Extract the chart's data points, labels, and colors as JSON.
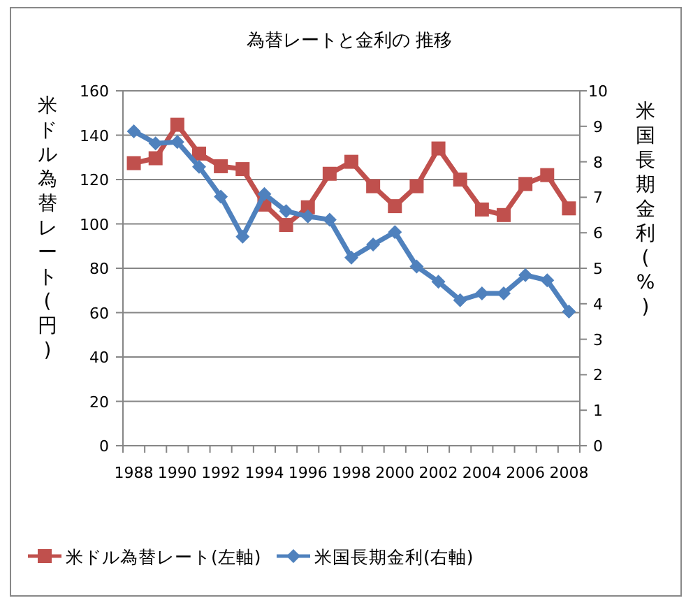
{
  "chart_data": {
    "type": "line",
    "title": "為替レートと金利の 推移",
    "ylabel": "米ドル為替レート(円)",
    "y2label": "米国長期金利(%)",
    "categories": [
      "1988",
      null,
      "1990",
      null,
      "1992",
      null,
      "1994",
      null,
      "1996",
      null,
      "1998",
      null,
      "2000",
      null,
      "2002",
      null,
      "2004",
      null,
      "2006",
      null,
      "2008"
    ],
    "series": [
      {
        "name": "米ドル為替レート(左軸)",
        "color": "#c0504d",
        "marker": "square",
        "values": [
          127.4,
          129.6,
          144.7,
          131.7,
          126,
          124.7,
          108.7,
          99.5,
          107.5,
          122.6,
          128,
          117,
          108,
          117,
          134,
          120,
          106.5,
          104,
          118,
          122,
          107
        ]
      },
      {
        "name": "米国長期金利(右軸)",
        "color": "#4f81bd",
        "marker": "diamond",
        "axis": "y2",
        "values": [
          8.86,
          8.52,
          8.56,
          7.86,
          7.02,
          5.89,
          7.09,
          6.61,
          6.46,
          6.37,
          5.3,
          5.67,
          6.02,
          5.05,
          4.62,
          4.1,
          4.29,
          4.29,
          4.81,
          4.66,
          3.78
        ]
      }
    ],
    "ylim": [
      0,
      160
    ],
    "yticks": [
      0,
      20,
      40,
      60,
      80,
      100,
      120,
      140,
      160
    ],
    "y2lim": [
      0,
      10
    ],
    "y2ticks": [
      0,
      1,
      2,
      3,
      4,
      5,
      6,
      7,
      8,
      9,
      10
    ],
    "grid": "y",
    "legend": "bottom"
  }
}
